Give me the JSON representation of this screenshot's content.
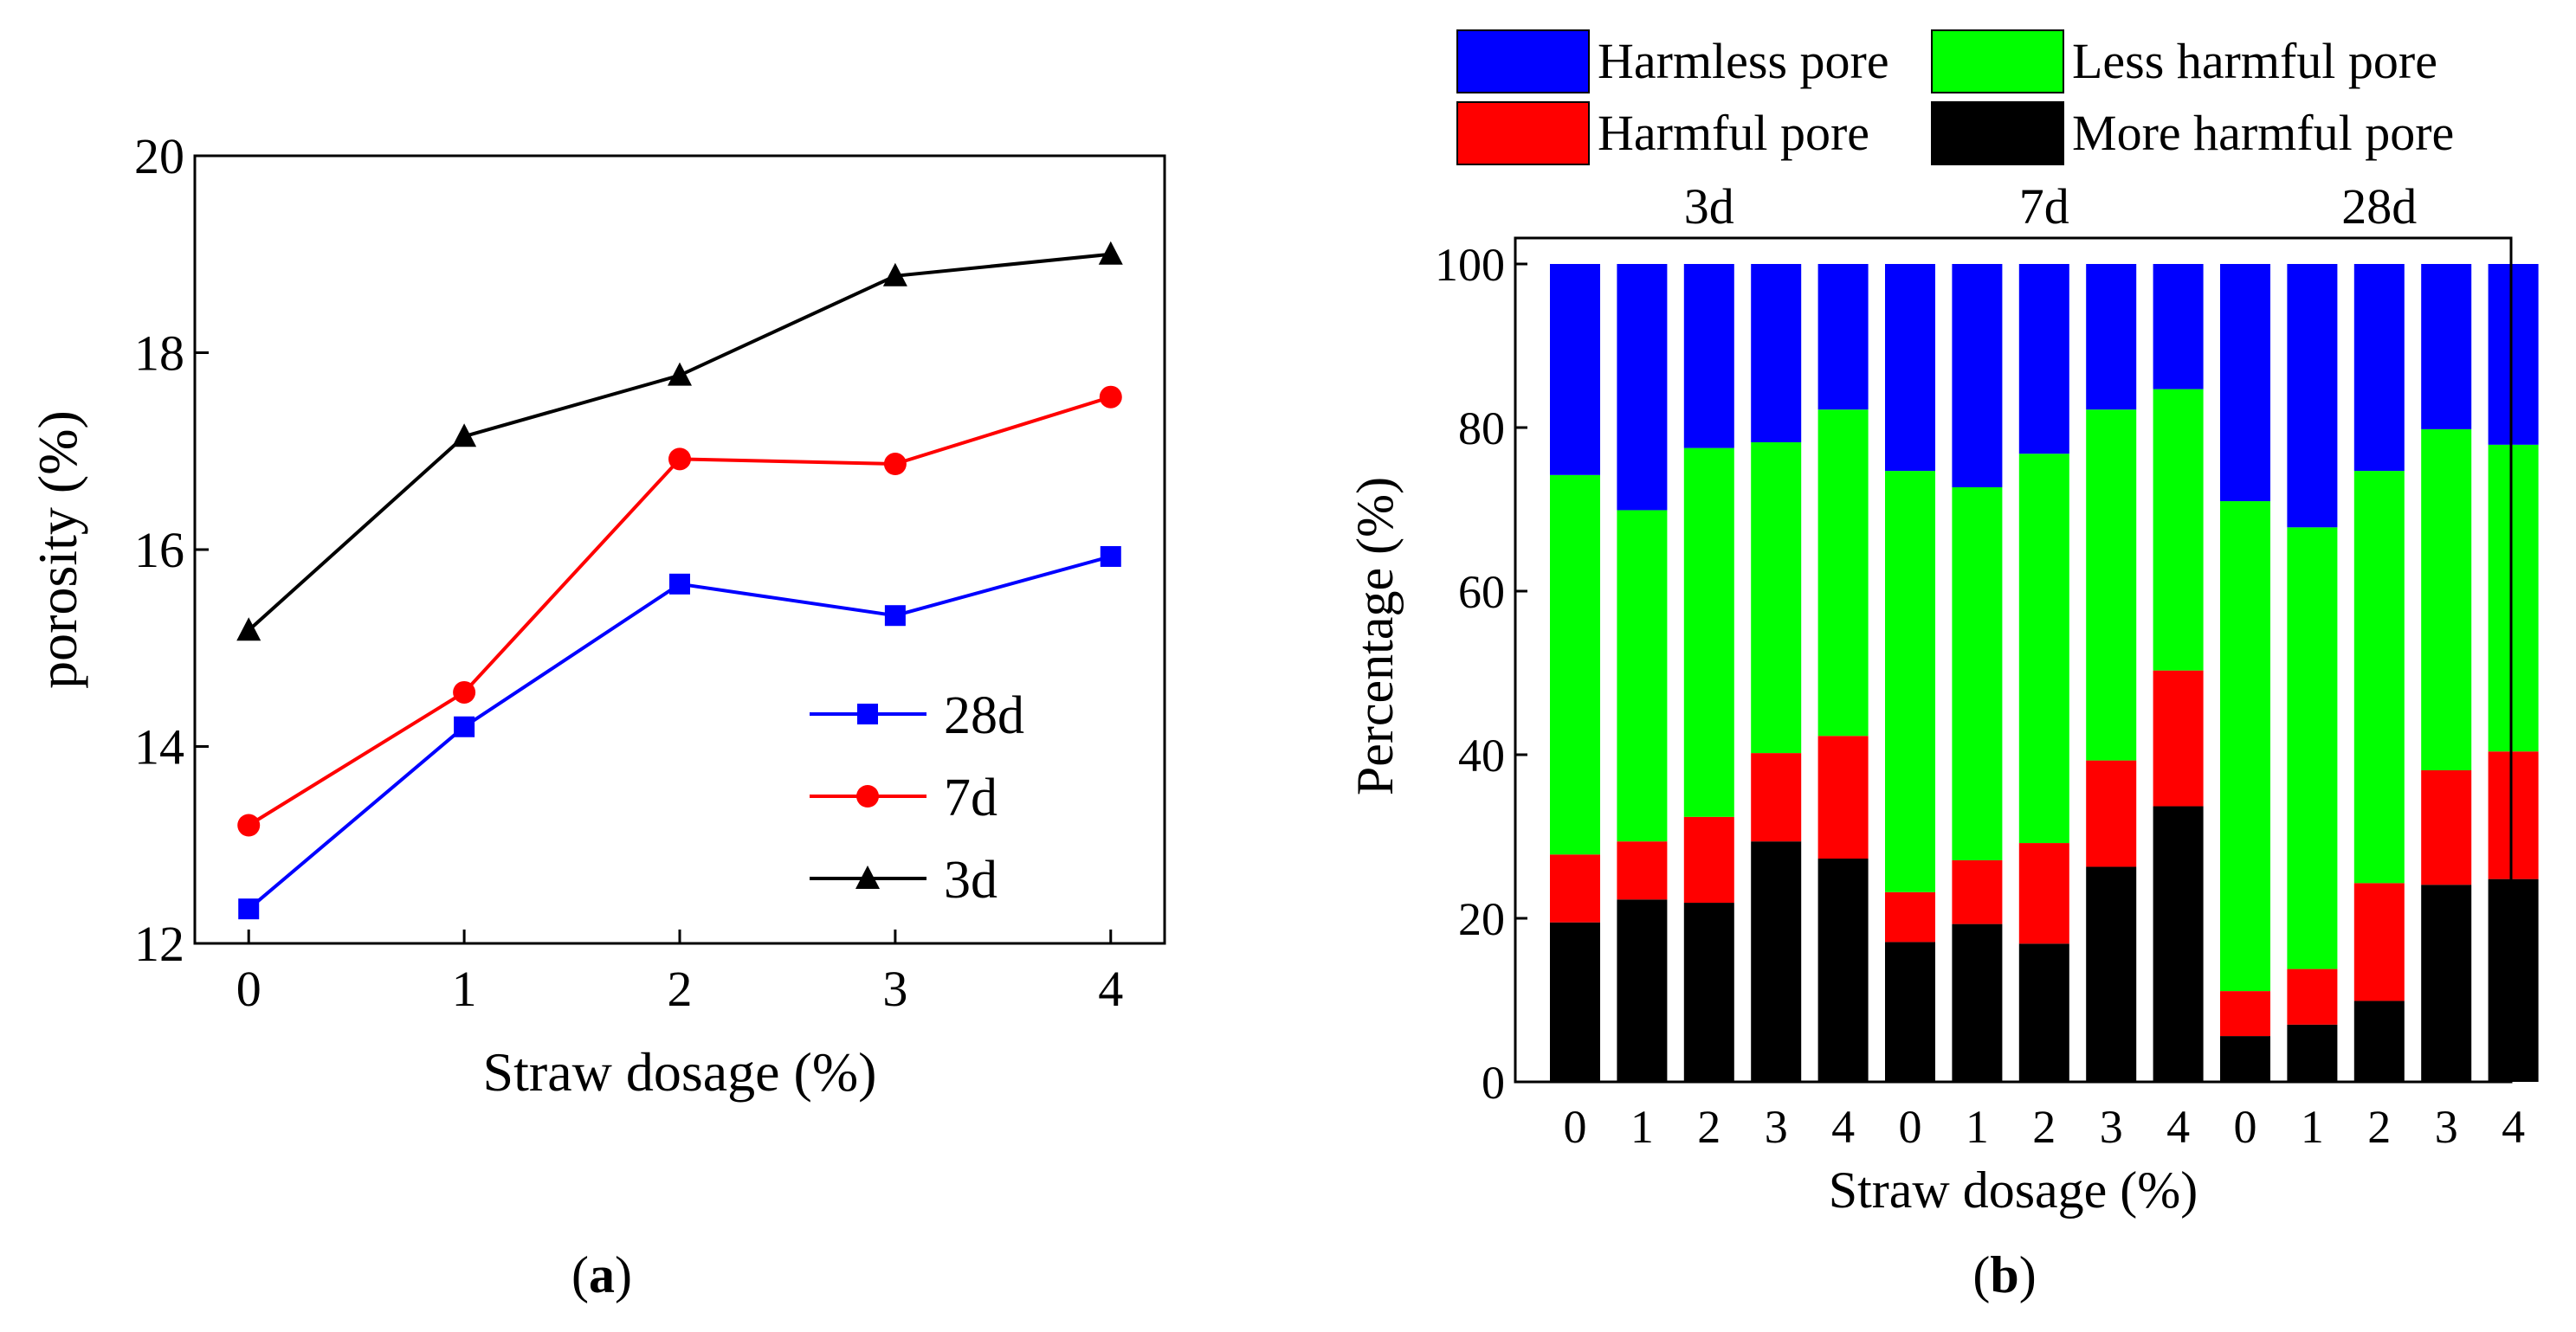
{
  "chart_data": [
    {
      "type": "line",
      "caption": "(a)",
      "caption_letter": "a",
      "xlabel": "Straw dosage (%)",
      "ylabel": "porosity (%)",
      "xlim": [
        -0.25,
        4.25
      ],
      "ylim": [
        12,
        20
      ],
      "xticks": [
        0,
        1,
        2,
        3,
        4
      ],
      "yticks": [
        12,
        14,
        16,
        18,
        20
      ],
      "x": [
        0,
        1,
        2,
        3,
        4
      ],
      "legend_position": "bottom-right",
      "series": [
        {
          "name": "28d",
          "color": "#0000ff",
          "marker": "square",
          "values": [
            12.35,
            14.2,
            15.65,
            15.33,
            15.93
          ]
        },
        {
          "name": "7d",
          "color": "#ff0000",
          "marker": "circle",
          "values": [
            13.2,
            14.55,
            16.92,
            16.87,
            17.55
          ]
        },
        {
          "name": "3d",
          "color": "#000000",
          "marker": "triangle",
          "values": [
            15.18,
            17.15,
            17.77,
            18.78,
            19.0
          ]
        }
      ]
    },
    {
      "type": "bar",
      "stacked": true,
      "caption": "(b)",
      "caption_letter": "b",
      "xlabel": "Straw dosage (%)",
      "ylabel": "Percentage (%)",
      "ylim": [
        0,
        100
      ],
      "yticks": [
        0,
        20,
        40,
        60,
        80,
        100
      ],
      "categories": [
        "0",
        "1",
        "2",
        "3",
        "4",
        "0",
        "1",
        "2",
        "3",
        "4",
        "0",
        "1",
        "2",
        "3",
        "4"
      ],
      "groups": [
        {
          "label": "3d",
          "start": 0,
          "count": 5
        },
        {
          "label": "7d",
          "start": 5,
          "count": 5
        },
        {
          "label": "28d",
          "start": 10,
          "count": 5
        }
      ],
      "legend_position": "top",
      "series": [
        {
          "name": "More harmful pore",
          "color": "#000000",
          "values": [
            19.5,
            22.3,
            21.9,
            29.4,
            27.3,
            17.1,
            19.3,
            16.9,
            26.3,
            33.7,
            5.6,
            7.0,
            9.9,
            24.1,
            24.8
          ]
        },
        {
          "name": "Harmful pore",
          "color": "#ff0000",
          "values": [
            8.3,
            7.1,
            10.5,
            10.8,
            15.0,
            6.1,
            7.8,
            12.3,
            13.0,
            16.6,
            5.5,
            6.8,
            14.4,
            14.0,
            15.6
          ]
        },
        {
          "name": "Less harmful pore",
          "color": "#00ff00",
          "values": [
            46.4,
            40.5,
            45.1,
            38.0,
            39.9,
            51.5,
            45.6,
            47.6,
            42.9,
            34.4,
            59.9,
            54.0,
            50.4,
            41.7,
            37.5
          ]
        },
        {
          "name": "Harmless pore",
          "color": "#0000ff",
          "values": [
            25.8,
            30.1,
            22.5,
            21.8,
            17.8,
            25.3,
            27.3,
            23.2,
            17.8,
            15.3,
            29.0,
            32.2,
            25.3,
            20.2,
            22.1
          ]
        }
      ]
    }
  ]
}
